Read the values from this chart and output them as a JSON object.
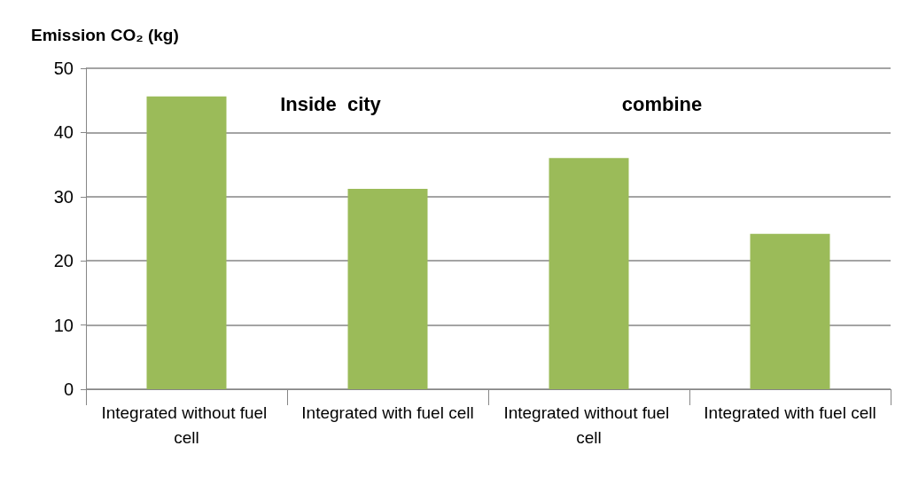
{
  "chart_data": {
    "type": "bar",
    "ylabel": "Emission CO₂ (kg)",
    "categories": [
      "Integrated without fuel cell",
      "Integrated with fuel cell",
      "Integrated without fuel cell",
      "Integrated with fuel cell"
    ],
    "values": [
      45.6,
      31.2,
      36.0,
      24.2
    ],
    "color": "#9bbb59",
    "ylim": [
      0,
      50
    ],
    "yticks": [
      0,
      10,
      20,
      30,
      40,
      50
    ],
    "grid": "y",
    "annotations": [
      "Inside  city",
      "combine"
    ]
  }
}
